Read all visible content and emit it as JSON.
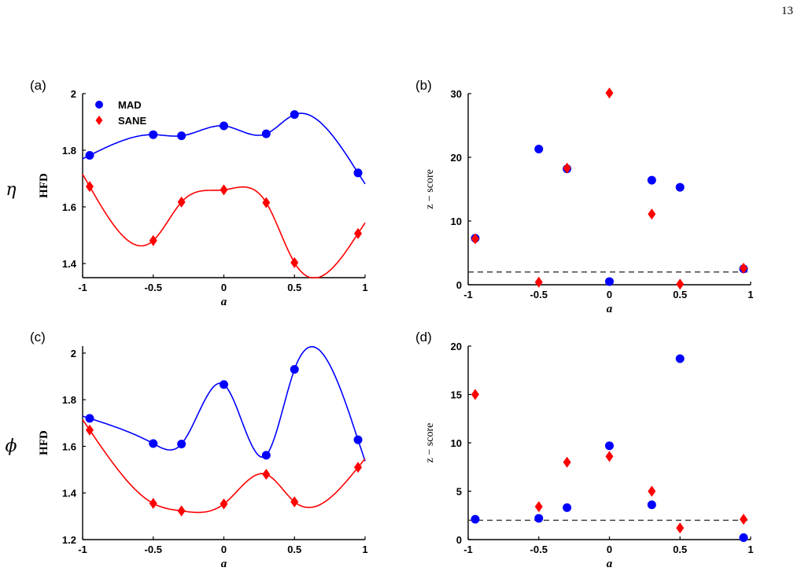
{
  "page_number": "13",
  "row_labels": [
    "η",
    "ϕ"
  ],
  "legend": [
    {
      "label": "MAD",
      "color": "#0000ff",
      "marker": "circle"
    },
    {
      "label": "SANE",
      "color": "#ff0000",
      "marker": "diamond"
    }
  ],
  "chart_data": [
    {
      "panel": "(a)",
      "type": "scatter",
      "ylabel": "HFD",
      "xlabel": "a",
      "xlim": [
        -1,
        1
      ],
      "ylim": [
        1.35,
        2.0
      ],
      "xticks": [
        "-1",
        "-0.5",
        "0",
        "0.5",
        "1"
      ],
      "yticks": [
        "1.4",
        "1.6",
        "1.8",
        "2"
      ],
      "ytick_values": [
        1.4,
        1.6,
        1.8,
        2.0
      ],
      "fitted_curves": true,
      "series": [
        {
          "name": "MAD",
          "color": "#0000ff",
          "marker": "circle",
          "x": [
            -0.95,
            -0.5,
            -0.3,
            0,
            0.3,
            0.5,
            0.95
          ],
          "y": [
            1.782,
            1.855,
            1.851,
            1.886,
            1.858,
            1.926,
            1.72
          ]
        },
        {
          "name": "SANE",
          "color": "#ff0000",
          "marker": "diamond",
          "x": [
            -0.95,
            -0.5,
            -0.3,
            0,
            0.3,
            0.5,
            0.95
          ],
          "y": [
            1.672,
            1.481,
            1.617,
            1.66,
            1.615,
            1.403,
            1.506
          ]
        }
      ]
    },
    {
      "panel": "(b)",
      "type": "scatter",
      "ylabel": "z − score",
      "xlabel": "a",
      "xlim": [
        -1,
        1
      ],
      "ylim": [
        0,
        30
      ],
      "xticks": [
        "-1",
        "-0.5",
        "0",
        "0.5",
        "1"
      ],
      "yticks": [
        "0",
        "10",
        "20",
        "30"
      ],
      "ytick_values": [
        0,
        10,
        20,
        30
      ],
      "threshold": 2,
      "series": [
        {
          "name": "MAD",
          "color": "#0000ff",
          "marker": "circle",
          "x": [
            -0.95,
            -0.5,
            -0.3,
            0,
            0.3,
            0.5,
            0.95
          ],
          "y": [
            7.3,
            21.3,
            18.2,
            0.5,
            16.4,
            15.3,
            2.5
          ]
        },
        {
          "name": "SANE",
          "color": "#ff0000",
          "marker": "diamond",
          "x": [
            -0.95,
            -0.5,
            -0.3,
            0,
            0.3,
            0.5,
            0.95
          ],
          "y": [
            7.2,
            0.4,
            18.3,
            30.1,
            11.1,
            0.1,
            2.6
          ]
        }
      ]
    },
    {
      "panel": "(c)",
      "type": "scatter",
      "ylabel": "HFD",
      "xlabel": "a",
      "xlim": [
        -1,
        1
      ],
      "ylim": [
        1.2,
        2.03
      ],
      "xticks": [
        "-1",
        "-0.5",
        "0",
        "0.5",
        "1"
      ],
      "yticks": [
        "1.2",
        "1.4",
        "1.6",
        "1.8",
        "2"
      ],
      "ytick_values": [
        1.2,
        1.4,
        1.6,
        1.8,
        2.0
      ],
      "fitted_curves": true,
      "series": [
        {
          "name": "MAD",
          "color": "#0000ff",
          "marker": "circle",
          "x": [
            -0.95,
            -0.5,
            -0.3,
            0,
            0.3,
            0.5,
            0.95
          ],
          "y": [
            1.72,
            1.612,
            1.61,
            1.865,
            1.562,
            1.93,
            1.628
          ]
        },
        {
          "name": "SANE",
          "color": "#ff0000",
          "marker": "diamond",
          "x": [
            -0.95,
            -0.5,
            -0.3,
            0,
            0.3,
            0.5,
            0.95
          ],
          "y": [
            1.67,
            1.355,
            1.323,
            1.353,
            1.48,
            1.362,
            1.51
          ]
        }
      ]
    },
    {
      "panel": "(d)",
      "type": "scatter",
      "ylabel": "z − score",
      "xlabel": "a",
      "xlim": [
        -1,
        1
      ],
      "ylim": [
        0,
        20
      ],
      "xticks": [
        "-1",
        "-0.5",
        "0",
        "0.5",
        "1"
      ],
      "yticks": [
        "0",
        "5",
        "10",
        "15",
        "20"
      ],
      "ytick_values": [
        0,
        5,
        10,
        15,
        20
      ],
      "threshold": 2,
      "series": [
        {
          "name": "MAD",
          "color": "#0000ff",
          "marker": "circle",
          "x": [
            -0.95,
            -0.5,
            -0.3,
            0,
            0.3,
            0.5,
            0.95
          ],
          "y": [
            2.1,
            2.2,
            3.3,
            9.7,
            3.6,
            18.7,
            0.2
          ]
        },
        {
          "name": "SANE",
          "color": "#ff0000",
          "marker": "diamond",
          "x": [
            -0.95,
            -0.5,
            -0.3,
            0,
            0.3,
            0.5,
            0.95
          ],
          "y": [
            15.0,
            3.4,
            8.0,
            8.6,
            5.0,
            1.2,
            2.1
          ]
        }
      ]
    }
  ]
}
